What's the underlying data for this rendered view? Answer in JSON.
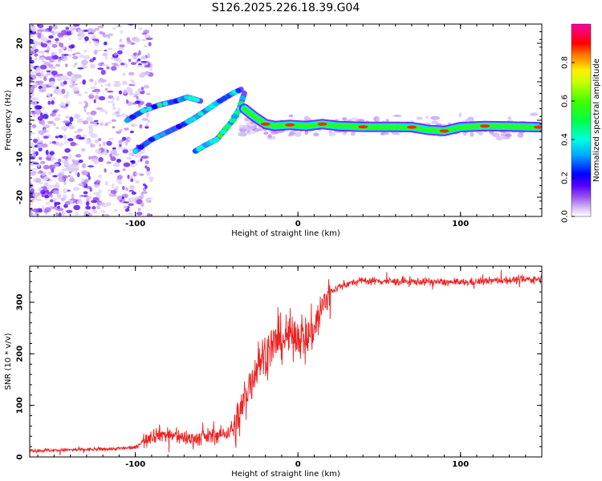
{
  "figure_title": "S126.2025.226.18.39.G04",
  "chart_data": [
    {
      "type": "heatmap",
      "title": "S126.2025.226.18.39.G04",
      "xlabel": "Height of straight line (km)",
      "ylabel": "Frequency (Hz)",
      "xlim": [
        -165,
        150
      ],
      "ylim": [
        -25,
        25
      ],
      "xticks": [
        -100,
        0,
        100
      ],
      "yticks": [
        -20,
        -10,
        0,
        10,
        20
      ],
      "colorbar": {
        "label": "Normalized spectral amplitude",
        "range": [
          0,
          1
        ],
        "ticks": [
          0.0,
          0.2,
          0.4,
          0.6,
          0.8
        ]
      },
      "ridge_segments": [
        {
          "name": "left-rising-ridge",
          "points": [
            [
              -105,
              0
            ],
            [
              -95,
              2.5
            ],
            [
              -85,
              4
            ],
            [
              -75,
              5
            ],
            [
              -68,
              6
            ],
            [
              -60,
              5
            ]
          ],
          "amplitude": 0.35
        },
        {
          "name": "lower-rising-ridge",
          "points": [
            [
              -100,
              -8
            ],
            [
              -90,
              -5
            ],
            [
              -80,
              -3
            ],
            [
              -70,
              -1
            ],
            [
              -62,
              1
            ],
            [
              -55,
              3
            ],
            [
              -48,
              5
            ],
            [
              -40,
              7
            ],
            [
              -35,
              8
            ]
          ],
          "amplitude": 0.35
        },
        {
          "name": "steep-ridge",
          "points": [
            [
              -63,
              -8
            ],
            [
              -57,
              -6.5
            ],
            [
              -50,
              -5
            ],
            [
              -44,
              -2
            ],
            [
              -40,
              0
            ],
            [
              -36,
              3
            ],
            [
              -33,
              7
            ]
          ],
          "amplitude": 0.45
        },
        {
          "name": "main-ridge",
          "points": [
            [
              -33,
              3
            ],
            [
              -27,
              1
            ],
            [
              -20,
              -1
            ],
            [
              -14,
              -1.5
            ],
            [
              -5,
              -1.2
            ],
            [
              5,
              -1.5
            ],
            [
              15,
              -1.0
            ],
            [
              25,
              -1.5
            ],
            [
              40,
              -1.7
            ],
            [
              60,
              -1.7
            ],
            [
              70,
              -1.8
            ],
            [
              80,
              -2.5
            ],
            [
              90,
              -2.8
            ],
            [
              100,
              -1.8
            ],
            [
              115,
              -1.5
            ],
            [
              130,
              -1.6
            ],
            [
              148,
              -1.8
            ]
          ],
          "amplitude": 0.95
        }
      ]
    },
    {
      "type": "line",
      "title": "",
      "xlabel": "Height of straight line (km)",
      "ylabel": "SNR (10 * v/v)",
      "xlim": [
        -165,
        150
      ],
      "ylim": [
        0,
        370
      ],
      "xticks": [
        -100,
        0,
        100
      ],
      "yticks": [
        0,
        100,
        200,
        300
      ],
      "color": "#ee2222",
      "trend": {
        "x": [
          -165,
          -120,
          -100,
          -92,
          -85,
          -75,
          -65,
          -55,
          -45,
          -38,
          -32,
          -25,
          -18,
          -12,
          -5,
          0,
          5,
          10,
          15,
          20,
          25,
          30,
          40,
          60,
          80,
          100,
          120,
          150
        ],
        "y": [
          12,
          15,
          18,
          40,
          45,
          40,
          35,
          40,
          45,
          60,
          120,
          180,
          210,
          225,
          235,
          240,
          230,
          250,
          290,
          320,
          330,
          335,
          342,
          340,
          340,
          338,
          342,
          345
        ]
      },
      "noise_amplitude": [
        {
          "x_range": [
            -165,
            -95
          ],
          "amp": 6
        },
        {
          "x_range": [
            -95,
            -40
          ],
          "amp": 25
        },
        {
          "x_range": [
            -40,
            20
          ],
          "amp": 70
        },
        {
          "x_range": [
            20,
            150
          ],
          "amp": 12
        }
      ]
    }
  ]
}
